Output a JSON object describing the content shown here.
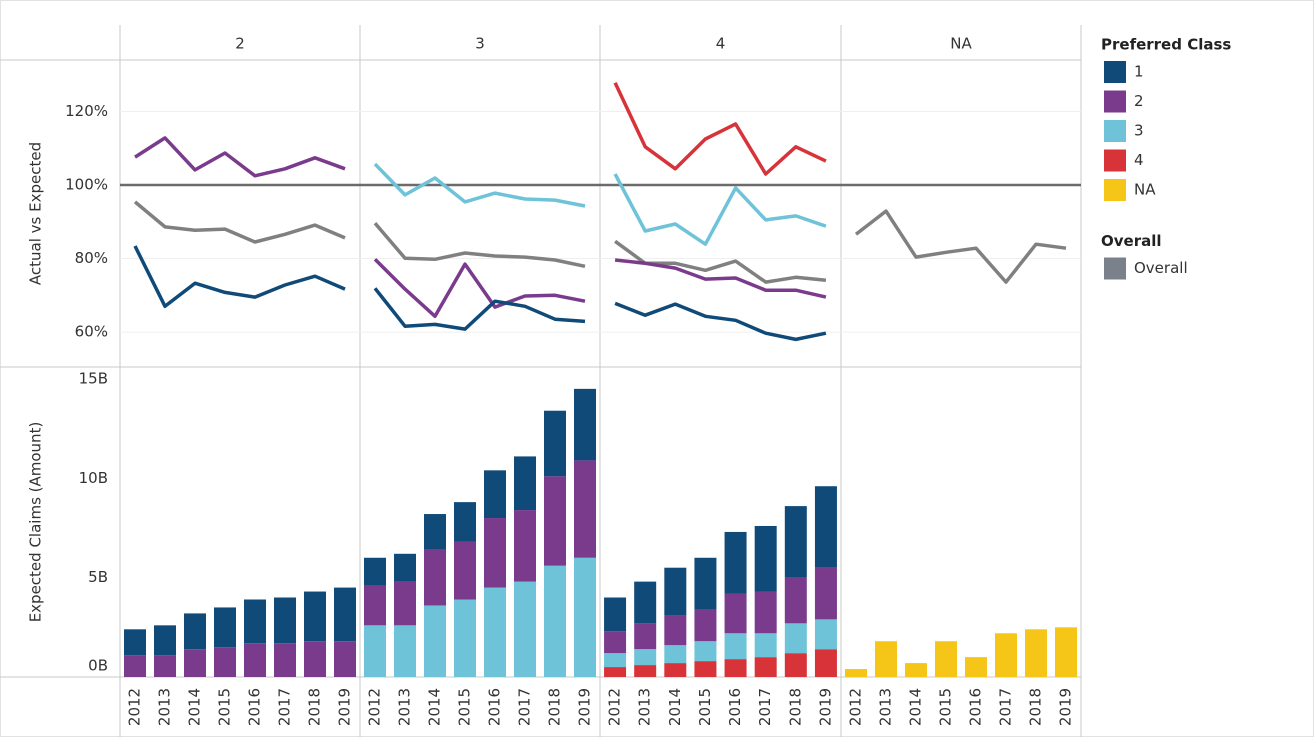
{
  "chart_data": [
    {
      "type": "line",
      "y_label": "Actual vs Expected",
      "grid": true,
      "reference_line": 100,
      "ylim": [
        50.5,
        134
      ],
      "yticks": [
        {
          "value": 60,
          "label": "60%"
        },
        {
          "value": 80,
          "label": "80%"
        },
        {
          "value": 100,
          "label": "100%"
        },
        {
          "value": 120,
          "label": "120%"
        }
      ],
      "panels": [
        {
          "title": "2",
          "series": [
            {
              "name": "2",
              "color": "#7b3b8c",
              "values": [
                107.6,
                112.8,
                104.1,
                108.7,
                102.5,
                104.4,
                107.4,
                104.4
              ]
            },
            {
              "name": "Overall",
              "color": "#808080",
              "values": [
                95.4,
                88.6,
                87.7,
                88.0,
                84.5,
                86.6,
                89.1,
                85.6
              ]
            },
            {
              "name": "1",
              "color": "#0f4a78",
              "values": [
                83.4,
                67.0,
                73.3,
                70.8,
                69.5,
                72.8,
                75.2,
                71.7
              ]
            }
          ]
        },
        {
          "title": "3",
          "series": [
            {
              "name": "3",
              "color": "#6ec3d8",
              "values": [
                105.7,
                97.3,
                101.9,
                95.4,
                97.8,
                96.2,
                95.9,
                94.3
              ]
            },
            {
              "name": "Overall",
              "color": "#808080",
              "values": [
                89.6,
                80.1,
                79.8,
                81.5,
                80.7,
                80.4,
                79.6,
                77.9
              ]
            },
            {
              "name": "2",
              "color": "#7b3b8c",
              "values": [
                79.8,
                71.7,
                64.3,
                78.5,
                66.8,
                69.8,
                70.0,
                68.4
              ]
            },
            {
              "name": "1",
              "color": "#0f4a78",
              "values": [
                71.9,
                61.6,
                62.1,
                60.8,
                68.4,
                67.0,
                63.5,
                62.9
              ]
            }
          ]
        },
        {
          "title": "4",
          "series": [
            {
              "name": "4",
              "color": "#d9333a",
              "values": [
                127.8,
                110.4,
                104.4,
                112.5,
                116.6,
                103.0,
                110.4,
                106.5
              ]
            },
            {
              "name": "3",
              "color": "#6ec3d8",
              "values": [
                103.0,
                87.5,
                89.4,
                83.9,
                99.2,
                90.5,
                91.6,
                88.8
              ]
            },
            {
              "name": "Overall",
              "color": "#808080",
              "values": [
                84.7,
                78.7,
                78.7,
                76.8,
                79.3,
                73.6,
                74.9,
                74.1
              ]
            },
            {
              "name": "2",
              "color": "#7b3b8c",
              "values": [
                79.6,
                78.7,
                77.4,
                74.4,
                74.7,
                71.4,
                71.4,
                69.5
              ]
            },
            {
              "name": "1",
              "color": "#0f4a78",
              "values": [
                67.8,
                64.6,
                67.6,
                64.3,
                63.2,
                59.7,
                58.0,
                59.7
              ]
            }
          ]
        },
        {
          "title": "NA",
          "series": [
            {
              "name": "Overall",
              "color": "#808080",
              "values": [
                86.6,
                92.9,
                80.4,
                81.7,
                82.8,
                73.6,
                83.9,
                82.8
              ]
            }
          ]
        }
      ]
    },
    {
      "type": "bar",
      "stacked": true,
      "y_label": "Expected Claims (Amount)",
      "categories": [
        "2012",
        "2013",
        "2014",
        "2015",
        "2016",
        "2017",
        "2018",
        "2019"
      ],
      "ylim": [
        0,
        15.6
      ],
      "yticks": [
        {
          "value": 0,
          "label": "0B"
        },
        {
          "value": 5,
          "label": "5B"
        },
        {
          "value": 10,
          "label": "10B"
        },
        {
          "value": 15,
          "label": "15B"
        }
      ],
      "panels": [
        {
          "series": [
            {
              "name": "2",
              "color": "#7b3b8c",
              "values": [
                1.1,
                1.1,
                1.4,
                1.5,
                1.7,
                1.7,
                1.8,
                1.8
              ]
            },
            {
              "name": "1",
              "color": "#0f4a78",
              "values": [
                1.3,
                1.5,
                1.8,
                2.0,
                2.2,
                2.3,
                2.5,
                2.7
              ]
            }
          ]
        },
        {
          "series": [
            {
              "name": "3",
              "color": "#6ec3d8",
              "values": [
                2.6,
                2.6,
                3.6,
                3.9,
                4.5,
                4.8,
                5.6,
                6.0
              ]
            },
            {
              "name": "2",
              "color": "#7b3b8c",
              "values": [
                2.0,
                2.2,
                2.8,
                2.9,
                3.5,
                3.6,
                4.5,
                4.9
              ]
            },
            {
              "name": "1",
              "color": "#0f4a78",
              "values": [
                1.4,
                1.4,
                1.8,
                2.0,
                2.4,
                2.7,
                3.3,
                3.6
              ]
            }
          ]
        },
        {
          "series": [
            {
              "name": "4",
              "color": "#d9333a",
              "values": [
                0.5,
                0.6,
                0.7,
                0.8,
                0.9,
                1.0,
                1.2,
                1.4
              ]
            },
            {
              "name": "3",
              "color": "#6ec3d8",
              "values": [
                0.7,
                0.8,
                0.9,
                1.0,
                1.3,
                1.2,
                1.5,
                1.5
              ]
            },
            {
              "name": "2",
              "color": "#7b3b8c",
              "values": [
                1.1,
                1.3,
                1.5,
                1.6,
                2.0,
                2.1,
                2.3,
                2.6
              ]
            },
            {
              "name": "1",
              "color": "#0f4a78",
              "values": [
                1.7,
                2.1,
                2.4,
                2.6,
                3.1,
                3.3,
                3.6,
                4.1
              ]
            }
          ]
        },
        {
          "series": [
            {
              "name": "NA",
              "color": "#f5c518",
              "values": [
                0.4,
                1.8,
                0.7,
                1.8,
                1.0,
                2.2,
                2.4,
                2.5
              ]
            }
          ]
        }
      ]
    }
  ],
  "legend": {
    "groups": [
      {
        "title": "Preferred Class",
        "items": [
          {
            "name": "1",
            "color": "#0f4a78"
          },
          {
            "name": "2",
            "color": "#7b3b8c"
          },
          {
            "name": "3",
            "color": "#6ec3d8"
          },
          {
            "name": "4",
            "color": "#d9333a"
          },
          {
            "name": "NA",
            "color": "#f5c518"
          }
        ]
      },
      {
        "title": "Overall",
        "items": [
          {
            "name": "Overall",
            "color": "#7a818a"
          }
        ]
      }
    ]
  }
}
